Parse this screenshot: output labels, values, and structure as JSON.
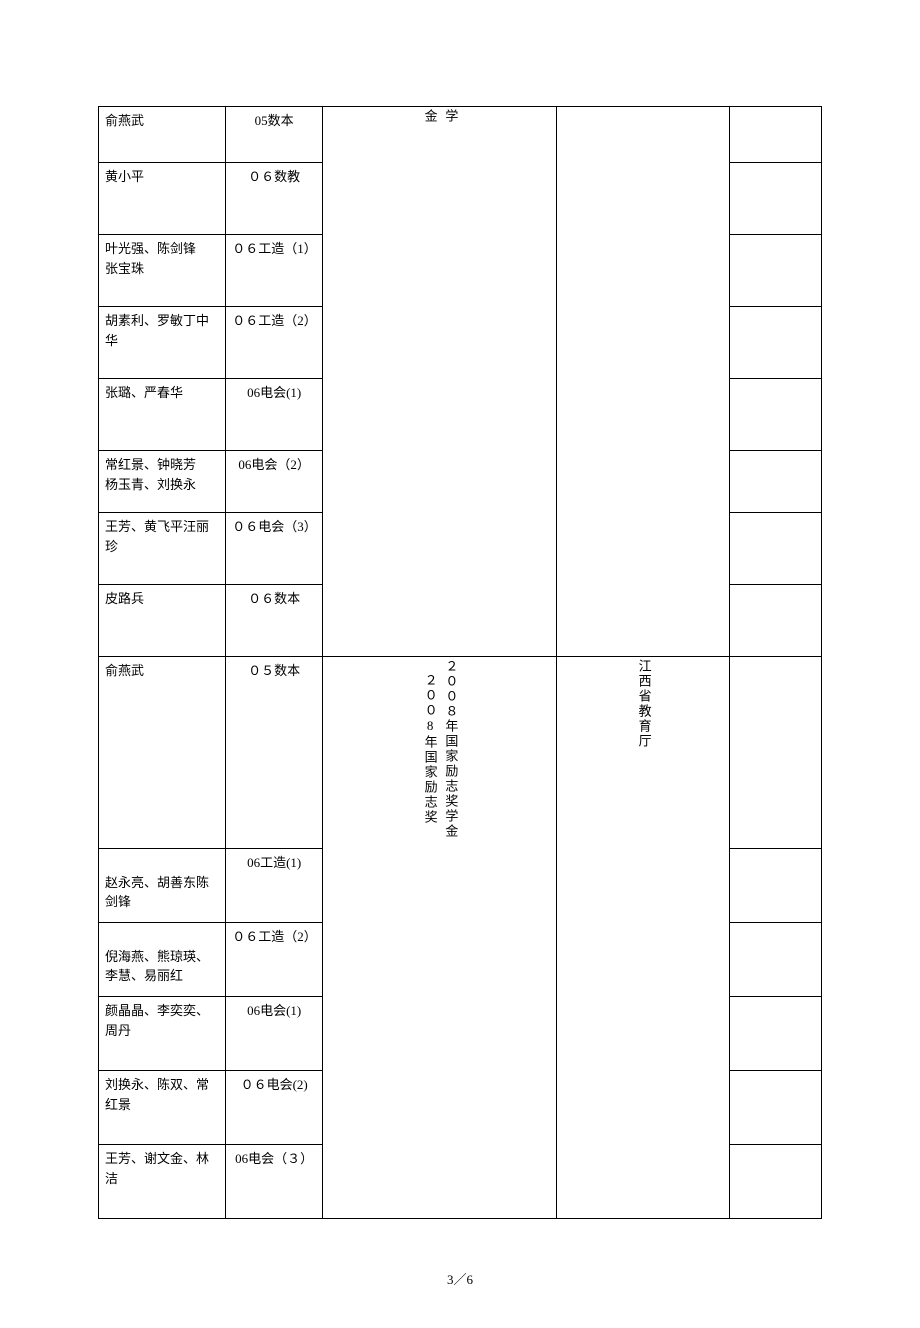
{
  "group1": {
    "award": "学\n金",
    "issuer": "",
    "rows": [
      {
        "names": "俞燕武",
        "class": "05数本",
        "h": "h56"
      },
      {
        "names": "黄小平",
        "class": "０６数教",
        "h": "h72"
      },
      {
        "names": "叶光强、陈剑锋　 张宝珠",
        "class": "０６工造（1）",
        "h": "h72"
      },
      {
        "names": "胡素利、罗敏丁中华",
        "class": "０６工造（2）",
        "h": "h72"
      },
      {
        "names": "张璐、严春华",
        "class": "06电会(1)",
        "h": "h72"
      },
      {
        "names": "常红景、钟晓芳\n杨玉青、刘换永",
        "class": "06电会（2）",
        "h": "h62"
      },
      {
        "names": "王芳、黄飞平汪丽珍",
        "class": "０６电会（3）",
        "h": "h72"
      },
      {
        "names": "皮路兵",
        "class": "０６数本",
        "h": "h72"
      }
    ]
  },
  "group2": {
    "award": "２００８年国家励志奖学金\n２００8年国家励志奖",
    "issuer": "江西省教育厅",
    "rows": [
      {
        "names": "俞燕武",
        "class": "０５数本",
        "h": "h80"
      },
      {
        "names": "\n赵永亮、胡善东陈剑锋",
        "class": "06工造(1)",
        "h": "h74"
      },
      {
        "names": "\n倪海燕、熊琼瑛、李慧、易丽红",
        "class": "０６工造（2）",
        "h": "h74"
      },
      {
        "names": "颜晶晶、李奕奕、周丹",
        "class": "06电会(1)",
        "h": "h74"
      },
      {
        "names": "刘换永、陈双、常红景",
        "class": "０６电会(2)",
        "h": "h74"
      },
      {
        "names": "王芳、谢文金、林洁",
        "class": "06电会（３）",
        "h": "h74"
      }
    ]
  },
  "page": "3／6"
}
